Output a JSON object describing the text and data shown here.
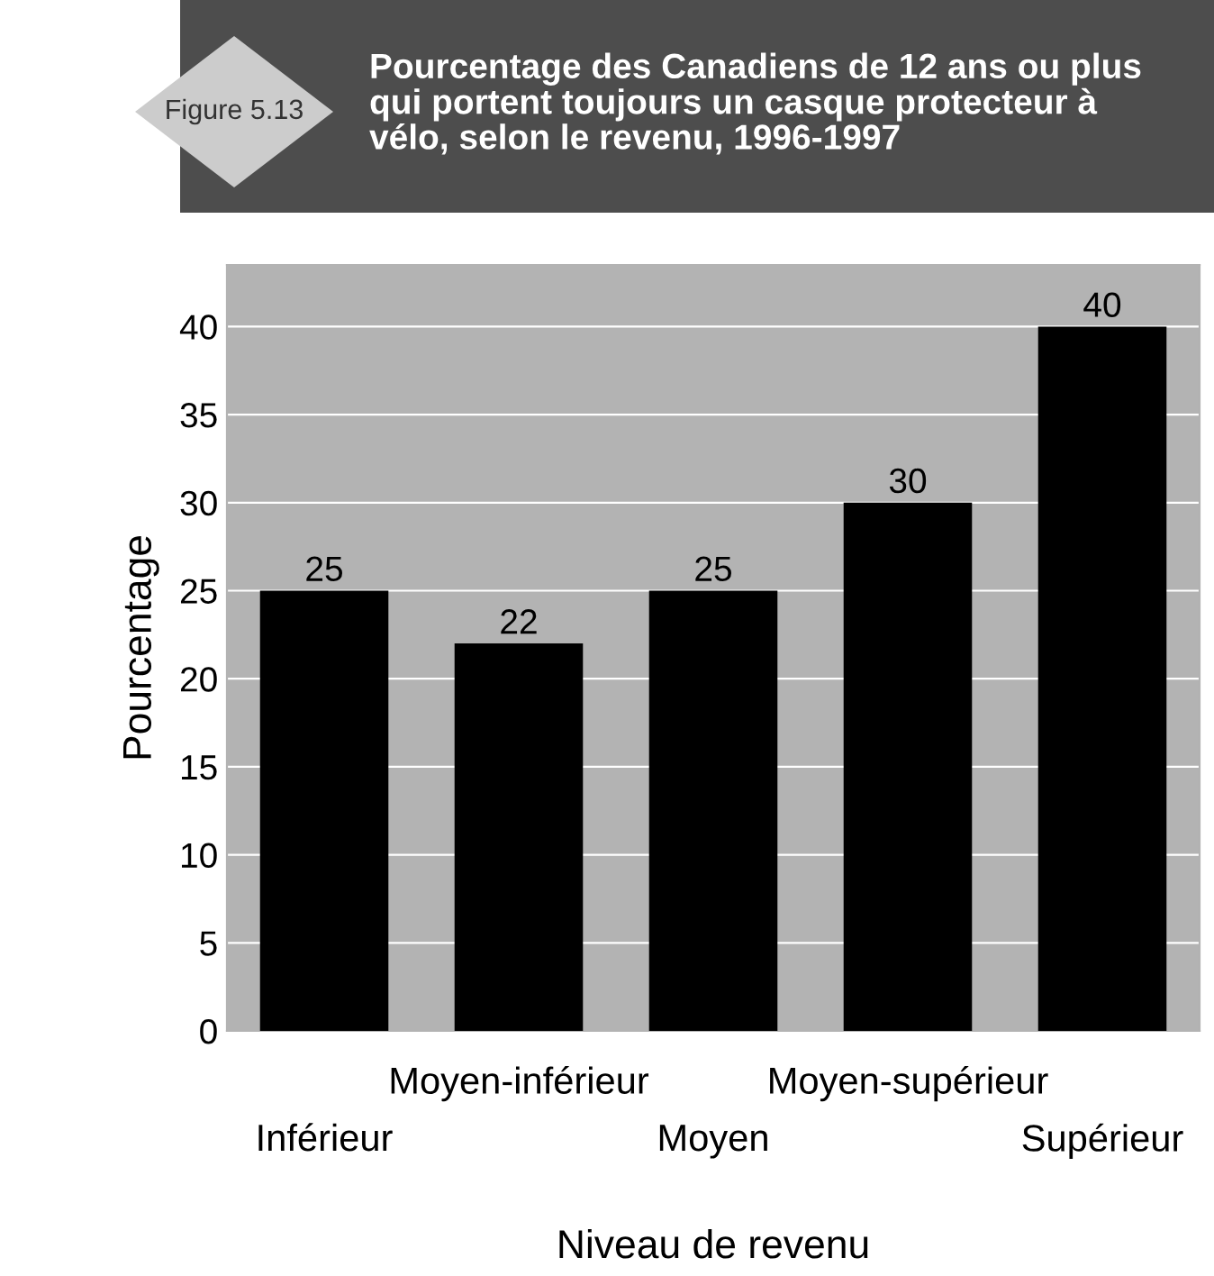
{
  "chart_data": {
    "type": "bar",
    "title": "Pourcentage des Canadiens de 12 ans ou plus\nqui portent toujours un casque protecteur à\nvélo, selon le revenu, 1996-1997",
    "annotations": [
      "Figure 5.13"
    ],
    "xlabel": "Niveau de revenu",
    "ylabel": "Pourcentage",
    "categories": [
      "Inférieur",
      "Moyen-inférieur",
      "Moyen",
      "Moyen-supérieur",
      "Supérieur"
    ],
    "values": [
      25,
      22,
      25,
      30,
      40
    ],
    "color": "#000000",
    "ylim": [
      0,
      43.5
    ],
    "yticks": [
      0,
      5,
      10,
      15,
      20,
      25,
      30,
      35,
      40
    ],
    "grid": "y",
    "data_labels": true
  }
}
